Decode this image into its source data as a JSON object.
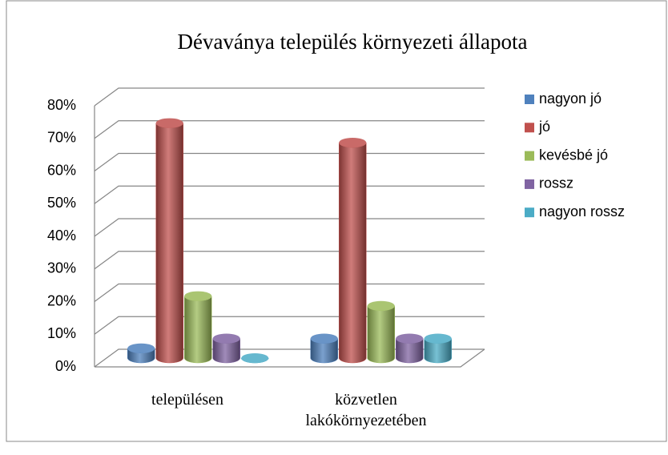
{
  "chart_data": {
    "type": "bar3d",
    "title": "Dévaványa település környezeti állapota",
    "categories": [
      "településen",
      "közvetlen lakókörnyezetében"
    ],
    "series": [
      {
        "name": "nagyon jó",
        "color": "#4f81bd",
        "values": [
          3,
          6
        ]
      },
      {
        "name": "jó",
        "color": "#c0504d",
        "values": [
          72,
          66
        ]
      },
      {
        "name": "kevésbé jó",
        "color": "#9bbb59",
        "values": [
          19,
          16
        ]
      },
      {
        "name": "rossz",
        "color": "#8064a2",
        "values": [
          6,
          6
        ]
      },
      {
        "name": "nagyon rossz",
        "color": "#4bacc6",
        "values": [
          0,
          6
        ]
      }
    ],
    "ylim": [
      0,
      80
    ],
    "yticks": [
      {
        "value": 0,
        "label": "0%"
      },
      {
        "value": 10,
        "label": "10%"
      },
      {
        "value": 20,
        "label": "20%"
      },
      {
        "value": 30,
        "label": "30%"
      },
      {
        "value": 40,
        "label": "40%"
      },
      {
        "value": 50,
        "label": "50%"
      },
      {
        "value": 60,
        "label": "60%"
      },
      {
        "value": 70,
        "label": "70%"
      },
      {
        "value": 80,
        "label": "80%"
      }
    ],
    "grid": true,
    "legend": "right"
  }
}
